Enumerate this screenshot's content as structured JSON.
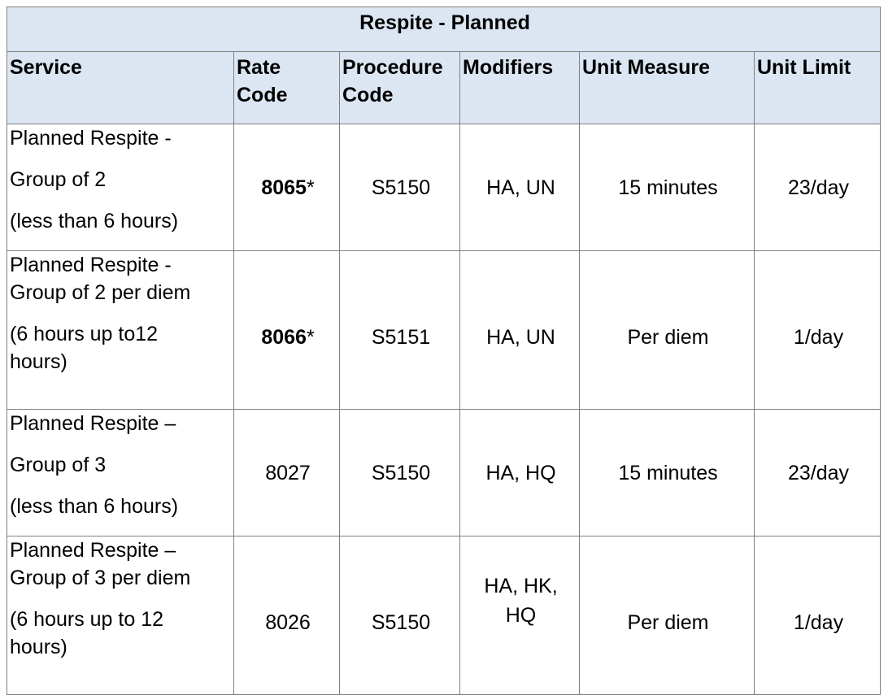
{
  "table": {
    "title": "Respite - Planned",
    "headers": {
      "service": "Service",
      "rate_code_1": "Rate",
      "rate_code_2": "Code",
      "procedure_code_1": "Procedure",
      "procedure_code_2": "Code",
      "modifiers": "Modifiers",
      "unit_measure": "Unit Measure",
      "unit_limit": "Unit Limit"
    },
    "rows": [
      {
        "service_lines": [
          "Planned Respite -",
          "Group of 2",
          "(less than 6 hours)"
        ],
        "rate_code": "8065",
        "rate_code_suffix": "*",
        "procedure_code": "S5150",
        "modifiers": "HA, UN",
        "unit_measure": "15 minutes",
        "unit_limit": "23/day"
      },
      {
        "service_lines": [
          "Planned Respite -",
          "Group of 2 per diem",
          "(6 hours up to12",
          "hours)"
        ],
        "rate_code": "8066",
        "rate_code_suffix": "*",
        "procedure_code": "S5151",
        "modifiers": "HA, UN",
        "unit_measure": "Per diem",
        "unit_limit": "1/day"
      },
      {
        "service_lines": [
          "Planned Respite –",
          "Group of 3",
          "(less than 6 hours)"
        ],
        "rate_code": "8027",
        "procedure_code": "S5150",
        "modifiers": "HA, HQ",
        "unit_measure": "15 minutes",
        "unit_limit": "23/day"
      },
      {
        "service_lines": [
          "Planned Respite –",
          "Group of 3 per diem",
          "(6 hours up to 12",
          "hours)"
        ],
        "rate_code": "8026",
        "procedure_code": "S5150",
        "modifiers_lines": [
          "HA, HK,",
          "HQ"
        ],
        "unit_measure": "Per diem",
        "unit_limit": "1/day"
      }
    ]
  }
}
